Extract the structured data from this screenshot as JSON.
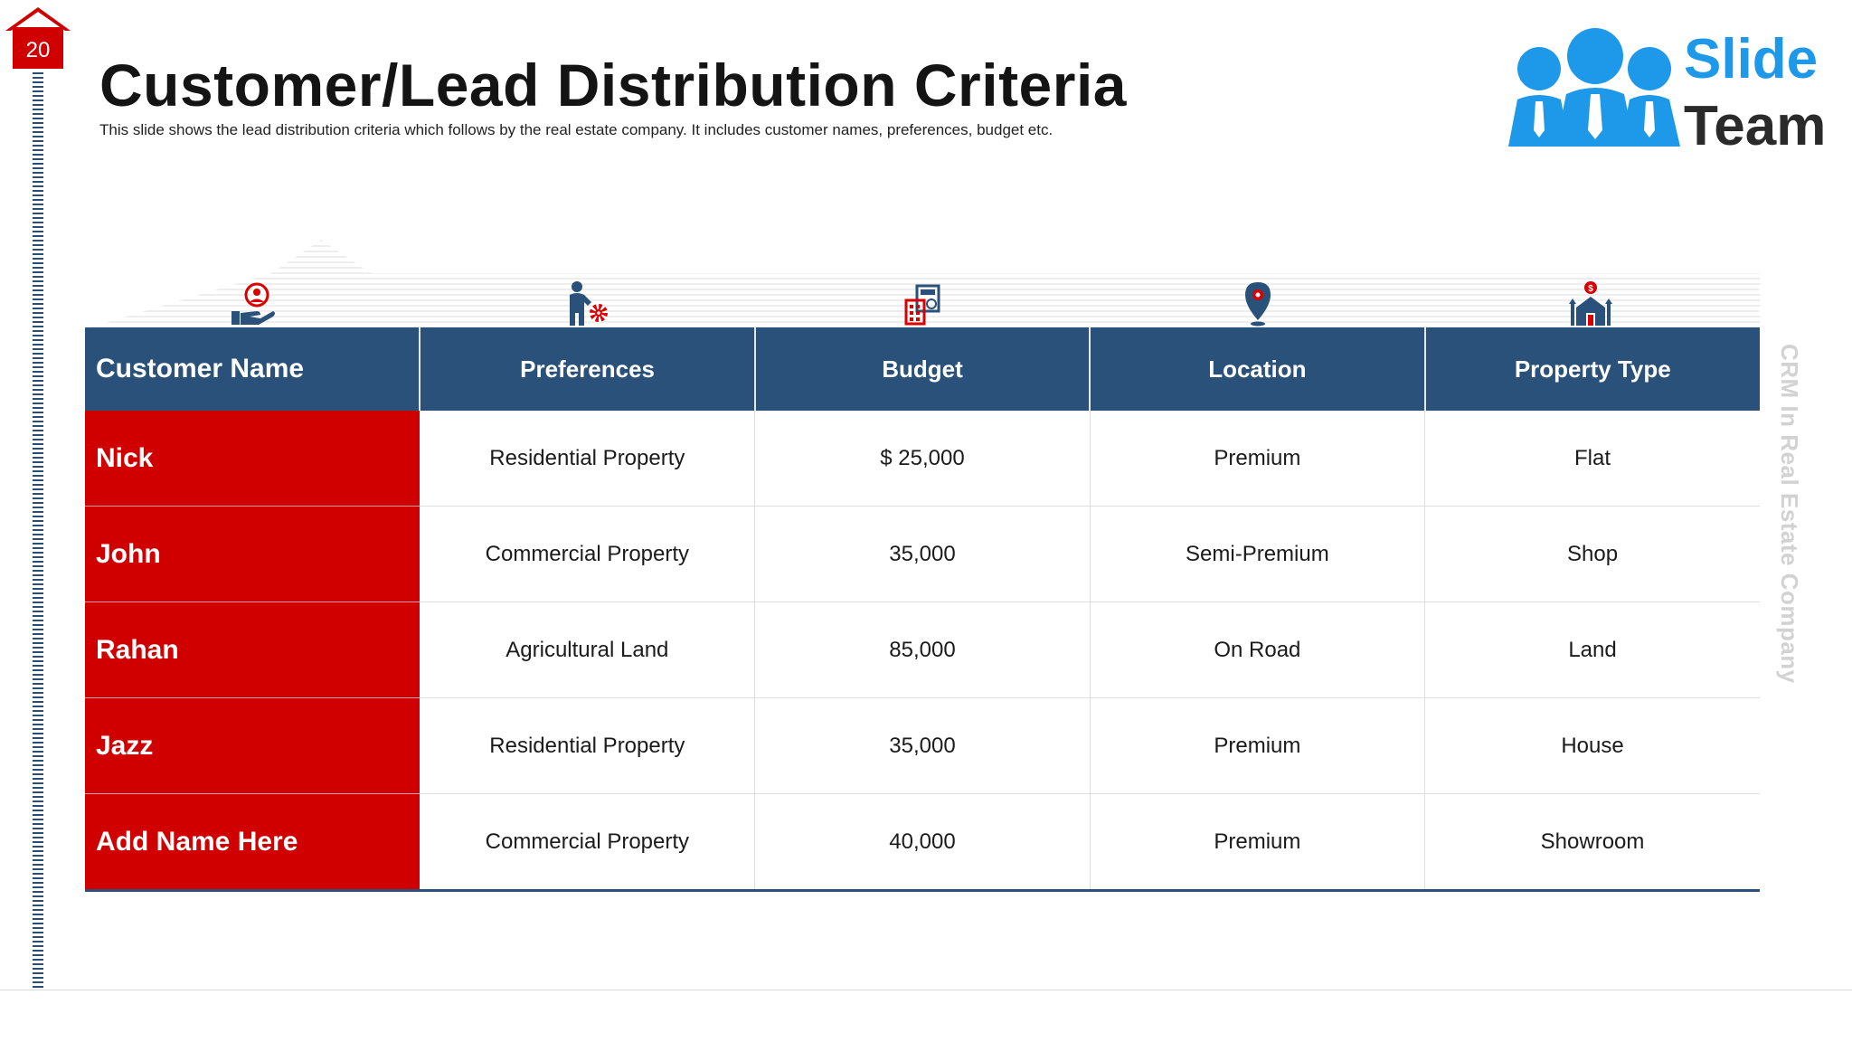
{
  "slide": {
    "page_number": "20",
    "title": "Customer/Lead Distribution Criteria",
    "subtitle": "This slide shows the lead distribution criteria which follows by the real estate company. It includes customer names, preferences, budget etc.",
    "side_label": "CRM In Real Estate Company"
  },
  "logo": {
    "line1": "Slide",
    "line2": "Team",
    "brand_blue": "#1e98e8"
  },
  "colors": {
    "header_blue": "#2a5179",
    "name_red": "#d00000",
    "accent_red": "#d80000"
  },
  "table": {
    "headers": [
      {
        "label": "Customer Name",
        "icon": "hand-user-icon"
      },
      {
        "label": "Preferences",
        "icon": "person-gear-icon"
      },
      {
        "label": "Budget",
        "icon": "calculator-icon"
      },
      {
        "label": "Location",
        "icon": "map-pin-icon"
      },
      {
        "label": "Property Type",
        "icon": "house-growth-icon"
      }
    ],
    "rows": [
      {
        "name": "Nick",
        "preference": "Residential Property",
        "budget": "$ 25,000",
        "location": "Premium",
        "property": "Flat"
      },
      {
        "name": "John",
        "preference": "Commercial Property",
        "budget": "35,000",
        "location": "Semi-Premium",
        "property": "Shop"
      },
      {
        "name": "Rahan",
        "preference": "Agricultural Land",
        "budget": "85,000",
        "location": "On Road",
        "property": "Land"
      },
      {
        "name": "Jazz",
        "preference": "Residential Property",
        "budget": "35,000",
        "location": "Premium",
        "property": "House"
      },
      {
        "name": "Add Name Here",
        "preference": "Commercial Property",
        "budget": "40,000",
        "location": "Premium",
        "property": "Showroom"
      }
    ]
  }
}
